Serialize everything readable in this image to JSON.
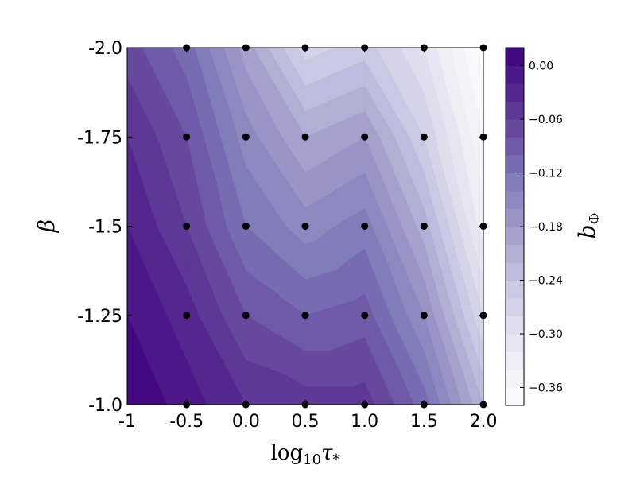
{
  "chart_data": {
    "type": "heatmap",
    "subtype": "filled-contour",
    "xlabel": {
      "base": "log",
      "sub": "10",
      "var": "τ",
      "star": "*"
    },
    "ylabel": "β",
    "colorbar_label": {
      "var": "b",
      "sub": "Φ"
    },
    "x_ticks": [
      "-1",
      "-0.5",
      "0.0",
      "0.5",
      "1.0",
      "1.5",
      "2.0"
    ],
    "y_ticks": [
      "-2.0",
      "-1.75",
      "-1.5",
      "-1.25",
      "-1.0"
    ],
    "xlim": [
      -1,
      2
    ],
    "ylim": [
      -1.0,
      -2.0
    ],
    "x": [
      -1,
      -0.5,
      0.0,
      0.5,
      1.0,
      1.5,
      2.0
    ],
    "y": [
      -2.0,
      -1.75,
      -1.5,
      -1.25,
      -1.0
    ],
    "z": [
      [
        -0.07,
        -0.11,
        -0.19,
        -0.27,
        -0.25,
        -0.3,
        -0.39
      ],
      [
        -0.04,
        -0.08,
        -0.15,
        -0.2,
        -0.18,
        -0.26,
        -0.36
      ],
      [
        -0.02,
        -0.06,
        -0.12,
        -0.15,
        -0.13,
        -0.21,
        -0.33
      ],
      [
        0.0,
        -0.03,
        -0.08,
        -0.1,
        -0.09,
        -0.16,
        -0.28
      ],
      [
        0.02,
        -0.01,
        -0.04,
        -0.05,
        -0.05,
        -0.11,
        -0.22
      ]
    ],
    "sample_points": {
      "x": [
        -0.5,
        0.0,
        0.5,
        1.0,
        1.5,
        2.0
      ],
      "y": [
        -2.0,
        -1.75,
        -1.5,
        -1.25,
        -1.0
      ]
    },
    "levels": [
      -0.38,
      -0.36,
      -0.34,
      -0.32,
      -0.3,
      -0.28,
      -0.26,
      -0.24,
      -0.22,
      -0.2,
      -0.18,
      -0.16,
      -0.14,
      -0.12,
      -0.1,
      -0.08,
      -0.06,
      -0.04,
      -0.02,
      0.0,
      0.02
    ],
    "colorbar_ticks": [
      "0.00",
      "−0.06",
      "−0.12",
      "−0.18",
      "−0.24",
      "−0.30",
      "−0.36"
    ],
    "colorbar_tick_values": [
      0.0,
      -0.06,
      -0.12,
      -0.18,
      -0.24,
      -0.3,
      -0.36
    ],
    "colormap": "Purples",
    "colormap_stops": [
      "#3f007d",
      "#54278f",
      "#6a51a3",
      "#807dba",
      "#9e9ac8",
      "#bcbddc",
      "#dadaeb",
      "#efedf5",
      "#fcfbfd"
    ]
  }
}
